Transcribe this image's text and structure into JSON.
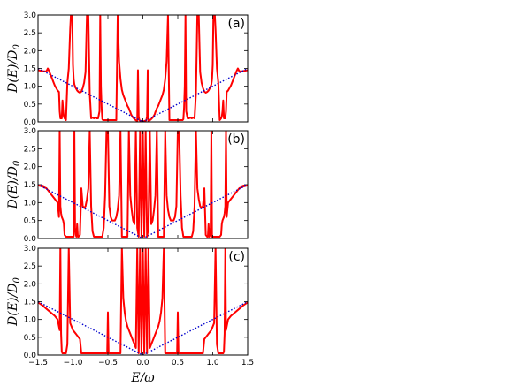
{
  "chart_data": [
    {
      "type": "line",
      "panel_label": "(a)",
      "ylabel": "D(E)/D_0",
      "xlabel": "",
      "xlim": [
        -1.5,
        1.5
      ],
      "ylim": [
        0,
        3.0
      ],
      "yticks": [
        "0.0",
        "0.5",
        "1.0",
        "1.5",
        "2.0",
        "2.5",
        "3.0"
      ],
      "xticks": [],
      "series": [
        {
          "style": "solid",
          "color": "#ff0000",
          "x": [
            -1.5,
            -1.42,
            -1.38,
            -1.36,
            -1.34,
            -1.32,
            -1.3,
            -1.28,
            -1.26,
            -1.24,
            -1.22,
            -1.2,
            -1.19,
            -1.18,
            -1.17,
            -1.16,
            -1.15,
            -1.14,
            -1.13,
            -1.12,
            -1.1,
            -1.08,
            -1.06,
            -1.04,
            -1.03,
            -1.02,
            -1.01,
            -1.0,
            -0.99,
            -0.98,
            -0.96,
            -0.94,
            -0.92,
            -0.9,
            -0.88,
            -0.86,
            -0.84,
            -0.82,
            -0.8,
            -0.78,
            -0.76,
            -0.74,
            -0.72,
            -0.7,
            -0.68,
            -0.66,
            -0.64,
            -0.62,
            -0.61,
            -0.6,
            -0.59,
            -0.58,
            -0.57,
            -0.56,
            -0.55,
            -0.54,
            -0.53,
            -0.52,
            -0.51,
            -0.5,
            -0.49,
            -0.48,
            -0.47,
            -0.46,
            -0.45,
            -0.44,
            -0.42,
            -0.4,
            -0.38,
            -0.36,
            -0.34,
            -0.32,
            -0.3,
            -0.28,
            -0.26,
            -0.24,
            -0.22,
            -0.2,
            -0.19,
            -0.18,
            -0.17,
            -0.16,
            -0.15,
            -0.14,
            -0.13,
            -0.12,
            -0.11,
            -0.1,
            -0.09,
            -0.08,
            -0.07,
            -0.06,
            -0.05,
            -0.04,
            -0.03,
            -0.02,
            -0.01,
            0.0,
            0.01,
            0.02,
            0.03,
            0.04,
            0.05,
            0.06,
            0.07,
            0.08,
            0.09,
            0.1,
            0.11,
            0.12,
            0.13,
            0.14,
            0.15,
            0.16,
            0.17,
            0.18,
            0.19,
            0.2,
            0.22,
            0.24,
            0.26,
            0.28,
            0.3,
            0.32,
            0.34,
            0.36,
            0.38,
            0.4,
            0.42,
            0.44,
            0.45,
            0.46,
            0.47,
            0.48,
            0.49,
            0.5,
            0.51,
            0.52,
            0.53,
            0.54,
            0.55,
            0.56,
            0.57,
            0.58,
            0.59,
            0.6,
            0.61,
            0.62,
            0.64,
            0.66,
            0.68,
            0.7,
            0.72,
            0.74,
            0.76,
            0.78,
            0.8,
            0.82,
            0.84,
            0.86,
            0.88,
            0.9,
            0.92,
            0.94,
            0.96,
            0.98,
            0.99,
            1.0,
            1.01,
            1.02,
            1.03,
            1.04,
            1.06,
            1.08,
            1.1,
            1.12,
            1.13,
            1.14,
            1.15,
            1.16,
            1.17,
            1.18,
            1.19,
            1.2,
            1.22,
            1.24,
            1.26,
            1.28,
            1.3,
            1.32,
            1.34,
            1.36,
            1.38,
            1.42,
            1.5
          ],
          "y": [
            1.45,
            1.42,
            1.42,
            1.5,
            1.42,
            1.32,
            1.22,
            1.12,
            1.02,
            0.95,
            0.88,
            0.84,
            0.3,
            0.1,
            0.1,
            0.1,
            0.6,
            0.3,
            0.15,
            0.1,
            0.05,
            1.1,
            1.5,
            2.6,
            3.0,
            3.0,
            3.0,
            1.6,
            1.2,
            1.05,
            0.95,
            0.88,
            0.84,
            0.82,
            0.85,
            0.95,
            1.1,
            1.4,
            3.0,
            3.0,
            0.8,
            0.1,
            0.12,
            0.1,
            0.12,
            0.1,
            0.1,
            0.3,
            3.0,
            1.0,
            0.4,
            0.08,
            0.05,
            0.05,
            0.05,
            0.05,
            0.05,
            0.05,
            0.05,
            0.05,
            0.05,
            0.05,
            0.05,
            0.05,
            0.05,
            0.05,
            0.05,
            0.05,
            0.05,
            3.0,
            1.7,
            1.2,
            0.9,
            0.75,
            0.65,
            0.55,
            0.45,
            0.38,
            0.32,
            0.28,
            0.22,
            0.18,
            0.15,
            0.12,
            0.1,
            0.08,
            0.06,
            0.05,
            0.03,
            0.02,
            1.45,
            0.15,
            0.05,
            0.03,
            0.03,
            0.02,
            0.02,
            0.02,
            0.02,
            0.02,
            0.03,
            0.03,
            0.05,
            0.15,
            1.45,
            0.02,
            0.03,
            0.05,
            0.06,
            0.08,
            0.1,
            0.12,
            0.15,
            0.18,
            0.22,
            0.28,
            0.32,
            0.38,
            0.45,
            0.55,
            0.65,
            0.75,
            0.9,
            1.2,
            1.7,
            3.0,
            0.05,
            0.05,
            0.05,
            0.05,
            0.05,
            0.05,
            0.05,
            0.05,
            0.05,
            0.05,
            0.05,
            0.05,
            0.05,
            0.05,
            0.05,
            0.05,
            0.05,
            0.08,
            0.4,
            1.0,
            3.0,
            0.3,
            0.1,
            0.1,
            0.12,
            0.1,
            0.12,
            0.1,
            0.8,
            3.0,
            3.0,
            1.4,
            1.1,
            0.95,
            0.85,
            0.82,
            0.84,
            0.88,
            0.95,
            1.05,
            1.2,
            1.6,
            3.0,
            3.0,
            3.0,
            2.6,
            1.5,
            1.1,
            0.05,
            0.1,
            0.15,
            0.3,
            0.6,
            0.1,
            0.1,
            0.1,
            0.3,
            0.84,
            0.88,
            0.95,
            1.02,
            1.12,
            1.22,
            1.32,
            1.42,
            1.5,
            1.42,
            1.42,
            1.45
          ]
        },
        {
          "style": "dotted",
          "color": "#0000cc",
          "x": [
            -1.5,
            0.0,
            1.5
          ],
          "y": [
            1.5,
            0.0,
            1.5
          ]
        }
      ]
    },
    {
      "type": "line",
      "panel_label": "(b)",
      "ylabel": "D(E)/D_0",
      "xlabel": "",
      "xlim": [
        -1.5,
        1.5
      ],
      "ylim": [
        0,
        3.0
      ],
      "yticks": [
        "0.0",
        "0.5",
        "1.0",
        "1.5",
        "2.0",
        "2.5",
        "3.0"
      ],
      "xticks": [],
      "series": [
        {
          "style": "solid",
          "color": "#ff0000",
          "x": [
            -1.5,
            -1.44,
            -1.38,
            -1.34,
            -1.3,
            -1.26,
            -1.22,
            -1.2,
            -1.19,
            -1.18,
            -1.17,
            -1.16,
            -1.15,
            -1.14,
            -1.13,
            -1.12,
            -1.1,
            -1.08,
            -1.06,
            -1.04,
            -1.02,
            -1.0,
            -0.99,
            -0.98,
            -0.97,
            -0.96,
            -0.95,
            -0.94,
            -0.93,
            -0.92,
            -0.9,
            -0.88,
            -0.86,
            -0.84,
            -0.82,
            -0.8,
            -0.78,
            -0.76,
            -0.74,
            -0.72,
            -0.7,
            -0.68,
            -0.66,
            -0.64,
            -0.62,
            -0.6,
            -0.58,
            -0.56,
            -0.54,
            -0.52,
            -0.5,
            -0.48,
            -0.46,
            -0.44,
            -0.42,
            -0.4,
            -0.38,
            -0.36,
            -0.34,
            -0.32,
            -0.3,
            -0.28,
            -0.26,
            -0.24,
            -0.22,
            -0.2,
            -0.18,
            -0.16,
            -0.14,
            -0.12,
            -0.1,
            -0.08,
            -0.06,
            -0.04,
            -0.02,
            0.0,
            0.02,
            0.04,
            0.06,
            0.08,
            0.1,
            0.12,
            0.14,
            0.16,
            0.18,
            0.2,
            0.22,
            0.24,
            0.26,
            0.28,
            0.3,
            0.32,
            0.34,
            0.36,
            0.38,
            0.4,
            0.42,
            0.44,
            0.46,
            0.48,
            0.5,
            0.52,
            0.54,
            0.56,
            0.58,
            0.6,
            0.62,
            0.64,
            0.66,
            0.68,
            0.7,
            0.72,
            0.74,
            0.76,
            0.78,
            0.8,
            0.82,
            0.84,
            0.86,
            0.88,
            0.9,
            0.92,
            0.93,
            0.94,
            0.95,
            0.96,
            0.97,
            0.98,
            0.99,
            1.0,
            1.02,
            1.04,
            1.06,
            1.08,
            1.1,
            1.12,
            1.13,
            1.14,
            1.15,
            1.16,
            1.17,
            1.18,
            1.19,
            1.2,
            1.22,
            1.26,
            1.3,
            1.34,
            1.38,
            1.44,
            1.5
          ],
          "y": [
            1.48,
            1.45,
            1.4,
            1.3,
            1.2,
            1.1,
            1.0,
            0.6,
            3.0,
            0.9,
            0.7,
            0.6,
            0.55,
            0.5,
            0.4,
            0.1,
            0.05,
            0.05,
            0.05,
            0.05,
            0.05,
            0.05,
            0.05,
            3.0,
            0.3,
            0.1,
            0.05,
            0.4,
            0.05,
            0.05,
            0.1,
            1.4,
            0.9,
            0.85,
            0.9,
            1.1,
            1.4,
            3.0,
            0.9,
            0.2,
            0.05,
            0.05,
            0.05,
            0.05,
            0.05,
            0.05,
            0.05,
            0.3,
            1.2,
            3.0,
            3.0,
            0.9,
            0.6,
            0.5,
            0.5,
            0.5,
            0.6,
            0.8,
            1.2,
            3.0,
            0.05,
            0.05,
            0.05,
            0.05,
            0.05,
            3.0,
            1.2,
            0.8,
            0.5,
            0.4,
            3.0,
            0.3,
            0.05,
            3.0,
            0.05,
            3.0,
            0.05,
            3.0,
            0.05,
            0.3,
            3.0,
            0.4,
            0.5,
            0.8,
            1.2,
            3.0,
            0.05,
            0.05,
            0.05,
            0.05,
            0.05,
            3.0,
            1.2,
            0.8,
            0.6,
            0.5,
            0.5,
            0.5,
            0.6,
            0.9,
            3.0,
            3.0,
            1.2,
            0.3,
            0.05,
            0.05,
            0.05,
            0.05,
            0.05,
            0.05,
            0.05,
            0.2,
            0.9,
            3.0,
            1.4,
            1.1,
            0.9,
            0.85,
            0.9,
            1.4,
            0.1,
            0.05,
            0.05,
            0.4,
            0.05,
            0.1,
            0.3,
            3.0,
            0.05,
            0.05,
            0.05,
            0.05,
            0.05,
            0.05,
            0.05,
            0.1,
            0.4,
            0.5,
            0.55,
            0.6,
            0.7,
            0.9,
            3.0,
            0.6,
            1.0,
            1.1,
            1.2,
            1.3,
            1.4,
            1.45,
            1.48
          ]
        },
        {
          "style": "dotted",
          "color": "#0000cc",
          "x": [
            -1.5,
            0.0,
            1.5
          ],
          "y": [
            1.5,
            0.0,
            1.5
          ]
        }
      ]
    },
    {
      "type": "line",
      "panel_label": "(c)",
      "ylabel": "D(E)/D_0",
      "xlabel": "E/ω",
      "xlim": [
        -1.5,
        1.5
      ],
      "ylim": [
        0,
        3.0
      ],
      "yticks": [
        "0.0",
        "0.5",
        "1.0",
        "1.5",
        "2.0",
        "2.5",
        "3.0"
      ],
      "xticks": [
        "−1.5",
        "−1.0",
        "−0.5",
        "0.0",
        "0.5",
        "1.0",
        "1.5"
      ],
      "series": [
        {
          "style": "solid",
          "color": "#ff0000",
          "x": [
            -1.5,
            -1.44,
            -1.38,
            -1.32,
            -1.26,
            -1.22,
            -1.19,
            -1.18,
            -1.17,
            -1.16,
            -1.15,
            -1.14,
            -1.12,
            -1.1,
            -1.08,
            -1.06,
            -1.04,
            -1.02,
            -1.0,
            -0.98,
            -0.96,
            -0.94,
            -0.92,
            -0.9,
            -0.88,
            -0.86,
            -0.84,
            -0.82,
            -0.8,
            -0.78,
            -0.76,
            -0.74,
            -0.72,
            -0.7,
            -0.68,
            -0.66,
            -0.64,
            -0.62,
            -0.6,
            -0.58,
            -0.56,
            -0.54,
            -0.52,
            -0.51,
            -0.5,
            -0.49,
            -0.48,
            -0.46,
            -0.44,
            -0.42,
            -0.4,
            -0.38,
            -0.36,
            -0.34,
            -0.32,
            -0.3,
            -0.28,
            -0.26,
            -0.24,
            -0.22,
            -0.2,
            -0.18,
            -0.16,
            -0.14,
            -0.12,
            -0.1,
            -0.08,
            -0.06,
            -0.04,
            -0.02,
            0.0,
            0.02,
            0.04,
            0.06,
            0.08,
            0.1,
            0.12,
            0.14,
            0.16,
            0.18,
            0.2,
            0.22,
            0.24,
            0.26,
            0.28,
            0.3,
            0.32,
            0.34,
            0.36,
            0.38,
            0.4,
            0.42,
            0.44,
            0.46,
            0.48,
            0.49,
            0.5,
            0.51,
            0.52,
            0.54,
            0.56,
            0.58,
            0.6,
            0.62,
            0.64,
            0.66,
            0.68,
            0.7,
            0.72,
            0.74,
            0.76,
            0.78,
            0.8,
            0.82,
            0.84,
            0.86,
            0.88,
            0.9,
            0.92,
            0.94,
            0.96,
            0.98,
            1.0,
            1.02,
            1.04,
            1.06,
            1.08,
            1.1,
            1.12,
            1.14,
            1.15,
            1.16,
            1.17,
            1.18,
            1.19,
            1.22,
            1.26,
            1.32,
            1.38,
            1.44,
            1.5
          ],
          "y": [
            1.48,
            1.4,
            1.3,
            1.2,
            1.1,
            1.0,
            0.7,
            3.0,
            0.6,
            0.1,
            0.05,
            0.05,
            0.05,
            0.05,
            0.3,
            3.0,
            0.9,
            0.8,
            0.7,
            0.65,
            0.6,
            0.55,
            0.5,
            0.45,
            0.05,
            0.05,
            0.05,
            0.05,
            0.05,
            0.05,
            0.05,
            0.05,
            0.05,
            0.05,
            0.05,
            0.05,
            0.05,
            0.05,
            0.05,
            0.05,
            0.05,
            0.05,
            0.05,
            0.05,
            1.2,
            0.05,
            0.05,
            0.05,
            0.05,
            0.05,
            0.05,
            0.05,
            0.05,
            0.05,
            0.05,
            3.0,
            1.6,
            1.2,
            0.95,
            0.8,
            0.7,
            0.6,
            0.5,
            0.4,
            0.3,
            0.2,
            3.0,
            0.05,
            3.0,
            0.05,
            3.0,
            0.05,
            3.0,
            0.05,
            3.0,
            0.2,
            0.3,
            0.4,
            0.5,
            0.6,
            0.7,
            0.8,
            0.95,
            1.2,
            1.6,
            3.0,
            0.05,
            0.05,
            0.05,
            0.05,
            0.05,
            0.05,
            0.05,
            0.05,
            0.05,
            0.05,
            1.2,
            0.05,
            0.05,
            0.05,
            0.05,
            0.05,
            0.05,
            0.05,
            0.05,
            0.05,
            0.05,
            0.05,
            0.05,
            0.05,
            0.05,
            0.05,
            0.05,
            0.05,
            0.05,
            0.05,
            0.45,
            0.5,
            0.55,
            0.6,
            0.65,
            0.7,
            0.8,
            0.9,
            3.0,
            0.3,
            0.05,
            0.05,
            0.05,
            0.05,
            0.05,
            0.1,
            0.6,
            3.0,
            0.7,
            1.0,
            1.1,
            1.2,
            1.3,
            1.4,
            1.48
          ]
        },
        {
          "style": "dotted",
          "color": "#0000cc",
          "x": [
            -1.5,
            0.0,
            1.5
          ],
          "y": [
            1.5,
            0.0,
            1.5
          ]
        }
      ]
    }
  ],
  "shared_ylabel": "D(E)/D_0",
  "shared_xlabel": "E/ω"
}
